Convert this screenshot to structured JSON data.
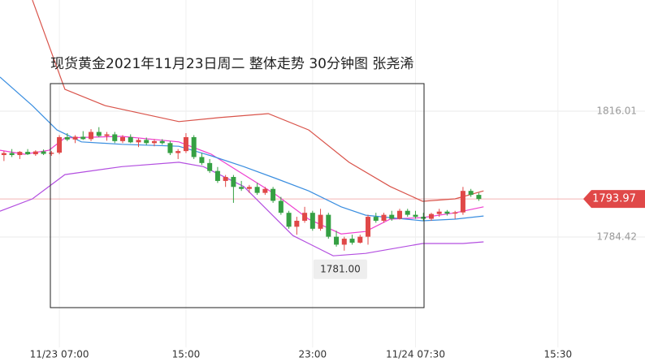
{
  "chart_data": {
    "type": "candlestick",
    "title": "现货黄金2021年11月23日周二  整体走势  30分钟图  张尧浠",
    "up_color": "#e04848",
    "down_color": "#35a043",
    "ylim": [
      1753.04,
      1843.93
    ],
    "yticks": [
      1816.01,
      1784.42
    ],
    "xlim": [
      -0.5,
      81
    ],
    "xticks": [
      {
        "value": 7,
        "label": "11/23 07:00"
      },
      {
        "value": 23,
        "label": "15:00"
      },
      {
        "value": 39,
        "label": "23:00"
      },
      {
        "value": 52,
        "label": "11/24 07:30"
      },
      {
        "value": 70,
        "label": "15:30"
      }
    ],
    "last_price": 1793.97,
    "annotation": {
      "x": 42.5,
      "value": 1781,
      "label": "1781.00"
    },
    "open": [
      1805.0,
      1805.5,
      1805.0,
      1805.8,
      1805.2,
      1805.9,
      1805.3,
      1805.6,
      1809.5,
      1808.9,
      1809.6,
      1809.0,
      1810.8,
      1809.8,
      1810.2,
      1808.5,
      1809.5,
      1808.2,
      1808.8,
      1808.0,
      1808.5,
      1808.0,
      1805.5,
      1806.0,
      1809.5,
      1804.5,
      1803.0,
      1801.0,
      1798.5,
      1799.5,
      1797.0,
      1796.5,
      1797.0,
      1795.5,
      1796.5,
      1793.5,
      1790.5,
      1787.0,
      1788.5,
      1790.5,
      1786.5,
      1790.0,
      1784.5,
      1782.5,
      1784.0,
      1783.0,
      1784.5,
      1789.5,
      1788.5,
      1790.0,
      1789.0,
      1791.0,
      1790.0,
      1789.5,
      1789.0,
      1790.2,
      1790.8,
      1790.3,
      1790.6,
      1796.0,
      1795.0
    ],
    "high": [
      1806.0,
      1806.5,
      1806.0,
      1806.5,
      1806.2,
      1806.4,
      1806.0,
      1810.0,
      1810.5,
      1810.0,
      1811.0,
      1811.5,
      1812.0,
      1810.8,
      1810.8,
      1810.0,
      1810.2,
      1809.2,
      1809.4,
      1809.0,
      1809.0,
      1808.5,
      1806.5,
      1810.5,
      1810.0,
      1805.5,
      1804.0,
      1802.0,
      1800.0,
      1800.0,
      1798.5,
      1797.5,
      1798.0,
      1797.0,
      1797.0,
      1794.5,
      1791.0,
      1789.5,
      1792.0,
      1791.0,
      1791.5,
      1790.5,
      1786.0,
      1784.5,
      1785.0,
      1785.0,
      1790.0,
      1790.5,
      1790.5,
      1791.0,
      1791.5,
      1791.5,
      1791.0,
      1790.5,
      1790.5,
      1791.5,
      1791.2,
      1791.0,
      1797.0,
      1796.5,
      1795.5
    ],
    "low": [
      1803.5,
      1804.5,
      1804.0,
      1805.0,
      1804.8,
      1805.0,
      1804.8,
      1805.2,
      1808.5,
      1808.0,
      1808.8,
      1808.5,
      1809.5,
      1808.6,
      1808.0,
      1808.0,
      1808.0,
      1807.0,
      1807.5,
      1807.2,
      1807.6,
      1805.0,
      1804.0,
      1805.5,
      1804.0,
      1802.5,
      1800.5,
      1798.0,
      1797.0,
      1793.0,
      1796.0,
      1795.5,
      1795.0,
      1795.0,
      1793.0,
      1790.0,
      1786.5,
      1785.0,
      1788.0,
      1786.0,
      1786.0,
      1784.0,
      1782.0,
      1781.0,
      1782.5,
      1782.8,
      1782.5,
      1788.0,
      1788.0,
      1788.5,
      1788.8,
      1789.5,
      1789.0,
      1788.5,
      1788.5,
      1789.5,
      1789.8,
      1789.0,
      1790.0,
      1794.5,
      1793.5
    ],
    "close": [
      1805.5,
      1805.0,
      1805.8,
      1805.2,
      1805.9,
      1805.3,
      1805.6,
      1809.5,
      1808.9,
      1809.6,
      1809.0,
      1810.8,
      1809.8,
      1810.2,
      1808.5,
      1809.5,
      1808.2,
      1808.8,
      1808.0,
      1808.5,
      1808.0,
      1805.5,
      1806.0,
      1809.5,
      1804.5,
      1803.0,
      1801.0,
      1798.5,
      1799.5,
      1797.0,
      1796.5,
      1797.0,
      1795.5,
      1796.5,
      1793.5,
      1790.5,
      1787.0,
      1788.5,
      1790.5,
      1786.5,
      1790.0,
      1784.5,
      1782.5,
      1784.0,
      1783.0,
      1784.5,
      1789.5,
      1788.5,
      1790.0,
      1789.0,
      1791.0,
      1790.0,
      1789.5,
      1789.0,
      1790.2,
      1790.8,
      1790.3,
      1790.6,
      1796.0,
      1795.0,
      1793.97
    ],
    "lines": [
      {
        "color": "#d9534a",
        "x": [
          3.6,
          7.7,
          12.8,
          22.1,
          27.2,
          33.4,
          38.5,
          43.6,
          48.8,
          52.9,
          57.0,
          60.6
        ],
        "values": [
          1843.9,
          1821.5,
          1817.4,
          1813.4,
          1814.4,
          1815.4,
          1811.3,
          1803.2,
          1797.1,
          1793.4,
          1794.0,
          1796.0
        ]
      },
      {
        "color": "#b34fe0",
        "x": [
          -0.5,
          3.6,
          7.7,
          14.9,
          22.1,
          25.2,
          30.3,
          36.5,
          41.6,
          45.7,
          52.9,
          58.0,
          60.6
        ],
        "values": [
          1790.9,
          1794.0,
          1800.1,
          1802.1,
          1803.2,
          1802.1,
          1797.1,
          1784.8,
          1779.7,
          1780.3,
          1782.8,
          1782.8,
          1783.2
        ]
      },
      {
        "color": "#ee3fd0",
        "x": [
          -0.5,
          2.6,
          5.7,
          7.7,
          14.9,
          22.1,
          26.2,
          30.3,
          34.4,
          38.5,
          42.6,
          45.7,
          48.8,
          52.9,
          57.0,
          60.6
        ],
        "values": [
          1806.2,
          1805.2,
          1806.2,
          1809.3,
          1809.7,
          1808.3,
          1805.2,
          1800.1,
          1795.0,
          1788.9,
          1785.2,
          1785.8,
          1788.9,
          1789.3,
          1790.5,
          1792.0
        ]
      },
      {
        "color": "#3a8ee0",
        "x": [
          -0.5,
          3.6,
          6.7,
          9.8,
          14.9,
          22.1,
          26.2,
          30.3,
          34.4,
          38.5,
          42.6,
          45.7,
          48.8,
          52.9,
          57.0,
          60.6
        ],
        "values": [
          1824.6,
          1817.4,
          1811.3,
          1808.3,
          1807.7,
          1807.2,
          1804.8,
          1802.1,
          1799.1,
          1796.0,
          1792.0,
          1789.9,
          1789.3,
          1788.5,
          1788.9,
          1789.7
        ]
      }
    ]
  }
}
